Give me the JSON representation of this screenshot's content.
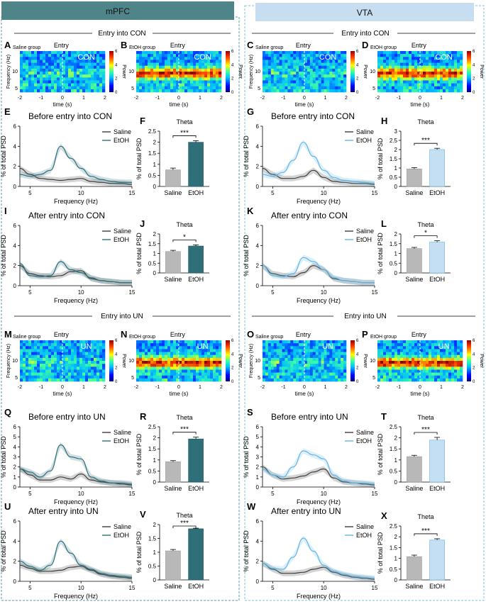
{
  "columns": {
    "left": {
      "label": "mPFC",
      "header_color": "#4f8489",
      "accent": "#2e6f79",
      "bar_fill": "#2e6f79",
      "bar_edge": "#1f5a63"
    },
    "right": {
      "label": "VTA",
      "header_color": "#c6def0",
      "accent": "#63b6e4",
      "bar_fill": "#c4dff1",
      "bar_edge": "#63b6e4"
    }
  },
  "section_titles": {
    "con_left": "Entry into CON",
    "con_right": "Entry into CON",
    "un_left": "Entry into UN",
    "un_right": "Entry into UN"
  },
  "colorbar": {
    "label": "Power",
    "ticks": [
      "0",
      "2",
      "4",
      "6"
    ]
  },
  "spectrogram_axes": {
    "ylabel": "Frequency (Hz)",
    "xlabel": "time (s)",
    "xticks": [
      "-2",
      "-1",
      "0",
      "1",
      "2"
    ],
    "yticks": [
      "5",
      "10"
    ]
  },
  "spectrograms": [
    {
      "id": "A",
      "letter": "A",
      "group": "Saline group",
      "entry": "Entry",
      "zone": "CON",
      "show_ylabel": true,
      "intensity": "low"
    },
    {
      "id": "B",
      "letter": "B",
      "group": "EtOH group",
      "entry": "Entry",
      "zone": "CON",
      "show_ylabel": false,
      "intensity": "high"
    },
    {
      "id": "C",
      "letter": "C",
      "group": "Saline group",
      "entry": "Entry",
      "zone": "CON",
      "show_ylabel": true,
      "intensity": "low"
    },
    {
      "id": "D",
      "letter": "D",
      "group": "EtOH group",
      "entry": "Entry",
      "zone": "CON",
      "show_ylabel": false,
      "intensity": "high"
    },
    {
      "id": "M",
      "letter": "M",
      "group": "Saline group",
      "entry": "Entry",
      "zone": "UN",
      "show_ylabel": true,
      "intensity": "low"
    },
    {
      "id": "N",
      "letter": "N",
      "group": "EtOH group",
      "entry": "Entry",
      "zone": "UN",
      "show_ylabel": false,
      "intensity": "high"
    },
    {
      "id": "O",
      "letter": "O",
      "group": "Saline group",
      "entry": "Entry",
      "zone": "UN",
      "show_ylabel": true,
      "intensity": "low"
    },
    {
      "id": "P",
      "letter": "P",
      "group": "EtOH group",
      "entry": "Entry",
      "zone": "UN",
      "show_ylabel": false,
      "intensity": "high"
    }
  ],
  "psd_axes": {
    "xlabel": "Frequency (Hz)",
    "xlabel_short": "Frequency (Hz)",
    "ylabel": "% of total PSD",
    "xlim": [
      4,
      15
    ],
    "xticks": [
      5,
      10,
      15
    ],
    "legend": [
      "Saline",
      "EtOH"
    ],
    "saline_color": "#3d3d3d"
  },
  "bar_axes": {
    "title": "Theta",
    "ylabel": "% of total PSD",
    "categories": [
      "Saline",
      "EtOH"
    ],
    "saline_fill": "#b8b8b8"
  },
  "chart_data": [
    {
      "id": "E",
      "type": "line",
      "letter": "E",
      "col": "left",
      "title": "Before entry into CON",
      "ylim": [
        0,
        6
      ],
      "yticks": [
        0,
        2,
        4,
        6
      ],
      "x": [
        4,
        5,
        6,
        7,
        8,
        9,
        10,
        11,
        12,
        13,
        14,
        15
      ],
      "series": [
        {
          "name": "Saline",
          "values": [
            1.8,
            1.2,
            0.8,
            0.7,
            0.6,
            0.7,
            0.8,
            0.5,
            0.4,
            0.3,
            0.3,
            0.2
          ]
        },
        {
          "name": "EtOH",
          "values": [
            1.2,
            1.0,
            1.2,
            1.6,
            4.0,
            2.8,
            1.8,
            1.0,
            0.7,
            0.5,
            0.4,
            0.4
          ]
        }
      ]
    },
    {
      "id": "F",
      "type": "bar",
      "letter": "F",
      "col": "left",
      "title": "Theta",
      "categories": [
        "Saline",
        "EtOH"
      ],
      "values": [
        0.75,
        2.0
      ],
      "errors": [
        0.08,
        0.07
      ],
      "ylim": [
        0,
        2.5
      ],
      "yticks": [
        0,
        0.5,
        1.0,
        1.5,
        2.0,
        2.5
      ],
      "sig": "***"
    },
    {
      "id": "G",
      "type": "line",
      "letter": "G",
      "col": "right",
      "title": "Before entry into CON",
      "ylim": [
        0,
        6
      ],
      "yticks": [
        0,
        2,
        4,
        6
      ],
      "x": [
        4,
        5,
        6,
        7,
        8,
        9,
        10,
        11,
        12,
        13,
        14,
        15
      ],
      "series": [
        {
          "name": "Saline",
          "values": [
            1.8,
            1.2,
            0.8,
            0.8,
            1.0,
            1.6,
            0.9,
            0.5,
            0.4,
            0.3,
            0.3,
            0.2
          ]
        },
        {
          "name": "EtOH",
          "values": [
            1.2,
            1.0,
            1.4,
            2.6,
            4.4,
            3.0,
            1.6,
            0.9,
            0.6,
            0.5,
            0.4,
            0.3
          ]
        }
      ]
    },
    {
      "id": "H",
      "type": "bar",
      "letter": "H",
      "col": "right",
      "title": "Theta",
      "categories": [
        "Saline",
        "EtOH"
      ],
      "values": [
        0.95,
        2.0
      ],
      "errors": [
        0.07,
        0.07
      ],
      "ylim": [
        0,
        3.0
      ],
      "yticks": [
        0,
        0.5,
        1.0,
        1.5,
        2.0,
        2.5,
        3.0
      ],
      "sig": "***"
    },
    {
      "id": "I",
      "type": "line",
      "letter": "I",
      "col": "left",
      "title": "After entry into CON",
      "ylim": [
        0,
        6
      ],
      "yticks": [
        0,
        2,
        4,
        6
      ],
      "x": [
        4,
        5,
        6,
        7,
        8,
        9,
        10,
        11,
        12,
        13,
        14,
        15
      ],
      "series": [
        {
          "name": "Saline",
          "values": [
            2.0,
            1.2,
            1.0,
            0.9,
            1.0,
            1.4,
            1.5,
            0.7,
            0.5,
            0.4,
            0.3,
            0.3
          ]
        },
        {
          "name": "EtOH",
          "values": [
            2.2,
            1.0,
            0.9,
            1.0,
            2.4,
            1.6,
            1.3,
            0.8,
            0.5,
            0.4,
            0.3,
            0.3
          ]
        }
      ]
    },
    {
      "id": "J",
      "type": "bar",
      "letter": "J",
      "col": "left",
      "title": "Theta",
      "categories": [
        "Saline",
        "EtOH"
      ],
      "values": [
        1.1,
        1.38
      ],
      "errors": [
        0.06,
        0.06
      ],
      "ylim": [
        0,
        2.0
      ],
      "yticks": [
        0,
        0.5,
        1.0,
        1.5,
        2.0
      ],
      "sig": "*"
    },
    {
      "id": "K",
      "type": "line",
      "letter": "K",
      "col": "right",
      "title": "After entry into CON",
      "ylim": [
        0,
        6
      ],
      "yticks": [
        0,
        2,
        4,
        6
      ],
      "x": [
        4,
        5,
        6,
        7,
        8,
        9,
        10,
        11,
        12,
        13,
        14,
        15
      ],
      "series": [
        {
          "name": "Saline",
          "values": [
            2.0,
            1.2,
            1.0,
            0.9,
            1.3,
            2.0,
            1.6,
            0.7,
            0.5,
            0.4,
            0.3,
            0.3
          ]
        },
        {
          "name": "EtOH",
          "values": [
            2.0,
            1.0,
            0.9,
            1.2,
            2.8,
            2.4,
            1.6,
            0.8,
            0.5,
            0.4,
            0.3,
            0.3
          ]
        }
      ]
    },
    {
      "id": "L",
      "type": "bar",
      "letter": "L",
      "col": "right",
      "title": "Theta",
      "categories": [
        "Saline",
        "EtOH"
      ],
      "values": [
        1.25,
        1.58
      ],
      "errors": [
        0.06,
        0.07
      ],
      "ylim": [
        0,
        2.0
      ],
      "yticks": [
        0,
        0.5,
        1.0,
        1.5,
        2.0
      ],
      "sig": "*"
    },
    {
      "id": "Q",
      "type": "line",
      "letter": "Q",
      "col": "left",
      "title": "Before entry into UN",
      "ylim": [
        0,
        6
      ],
      "yticks": [
        0,
        1,
        2,
        3,
        4,
        5,
        6
      ],
      "x": [
        4,
        5,
        6,
        7,
        8,
        9,
        10,
        11,
        12,
        13,
        14,
        15
      ],
      "series": [
        {
          "name": "Saline",
          "values": [
            1.8,
            1.2,
            0.7,
            0.7,
            1.0,
            0.8,
            1.3,
            0.7,
            0.5,
            0.4,
            0.3,
            0.2
          ]
        },
        {
          "name": "EtOH",
          "values": [
            1.8,
            1.5,
            1.0,
            1.6,
            4.2,
            3.0,
            2.8,
            1.0,
            0.6,
            0.4,
            0.4,
            0.3
          ]
        }
      ]
    },
    {
      "id": "R",
      "type": "bar",
      "letter": "R",
      "col": "left",
      "title": "Theta",
      "categories": [
        "Saline",
        "EtOH"
      ],
      "values": [
        0.92,
        1.95
      ],
      "errors": [
        0.05,
        0.08
      ],
      "ylim": [
        0,
        2.5
      ],
      "yticks": [
        0,
        0.5,
        1.0,
        1.5,
        2.0,
        2.5
      ],
      "sig": "***"
    },
    {
      "id": "S",
      "type": "line",
      "letter": "S",
      "col": "right",
      "title": "Before entry into UN",
      "ylim": [
        0,
        6
      ],
      "yticks": [
        0,
        1,
        2,
        3,
        4,
        5,
        6
      ],
      "x": [
        4,
        5,
        6,
        7,
        8,
        9,
        10,
        11,
        12,
        13,
        14,
        15
      ],
      "series": [
        {
          "name": "Saline",
          "values": [
            2.0,
            1.2,
            0.8,
            0.9,
            1.1,
            1.5,
            1.8,
            0.9,
            0.5,
            0.4,
            0.3,
            0.2
          ]
        },
        {
          "name": "EtOH",
          "values": [
            1.8,
            1.2,
            1.0,
            2.0,
            3.6,
            3.2,
            2.8,
            1.2,
            0.6,
            0.4,
            0.4,
            0.3
          ]
        }
      ]
    },
    {
      "id": "T",
      "type": "bar",
      "letter": "T",
      "col": "right",
      "title": "Theta",
      "categories": [
        "Saline",
        "EtOH"
      ],
      "values": [
        1.15,
        1.9
      ],
      "errors": [
        0.06,
        0.12
      ],
      "ylim": [
        0,
        2.5
      ],
      "yticks": [
        0,
        0.5,
        1.0,
        1.5,
        2.0,
        2.5
      ],
      "sig": "***"
    },
    {
      "id": "U",
      "type": "line",
      "letter": "U",
      "col": "left",
      "title": "After entry into UN",
      "ylim": [
        0,
        6
      ],
      "yticks": [
        0,
        2,
        4,
        6
      ],
      "x": [
        4,
        5,
        6,
        7,
        8,
        9,
        10,
        11,
        12,
        13,
        14,
        15
      ],
      "series": [
        {
          "name": "Saline",
          "values": [
            1.6,
            1.3,
            1.0,
            1.0,
            1.1,
            1.4,
            1.5,
            1.1,
            0.7,
            0.5,
            0.4,
            0.3
          ]
        },
        {
          "name": "EtOH",
          "values": [
            2.0,
            1.5,
            1.1,
            1.6,
            4.0,
            2.8,
            1.6,
            1.2,
            0.8,
            0.6,
            0.5,
            0.4
          ]
        }
      ]
    },
    {
      "id": "V",
      "type": "bar",
      "letter": "V",
      "col": "left",
      "title": "Theta",
      "categories": [
        "Saline",
        "EtOH"
      ],
      "values": [
        1.05,
        1.85
      ],
      "errors": [
        0.05,
        0.02
      ],
      "ylim": [
        0,
        2.0
      ],
      "yticks": [
        0,
        0.5,
        1.0,
        1.5,
        2.0
      ],
      "sig": "***"
    },
    {
      "id": "W",
      "type": "line",
      "letter": "W",
      "col": "right",
      "title": "After entry into UN",
      "ylim": [
        0,
        6
      ],
      "yticks": [
        0,
        2,
        4,
        6
      ],
      "x": [
        4,
        5,
        6,
        7,
        8,
        9,
        10,
        11,
        12,
        13,
        14,
        15
      ],
      "series": [
        {
          "name": "Saline",
          "values": [
            1.8,
            1.2,
            0.8,
            0.8,
            0.9,
            1.2,
            1.4,
            0.9,
            0.6,
            0.4,
            0.3,
            0.2
          ]
        },
        {
          "name": "EtOH",
          "values": [
            1.8,
            1.3,
            1.2,
            2.4,
            4.3,
            3.0,
            1.6,
            1.0,
            0.7,
            0.5,
            0.4,
            0.3
          ]
        }
      ]
    },
    {
      "id": "X",
      "type": "bar",
      "letter": "X",
      "col": "right",
      "title": "Theta",
      "categories": [
        "Saline",
        "EtOH"
      ],
      "values": [
        1.08,
        1.85
      ],
      "errors": [
        0.07,
        0.06
      ],
      "ylim": [
        0,
        2.5
      ],
      "yticks": [
        0,
        0.5,
        1.0,
        1.5,
        2.0,
        2.5
      ],
      "sig": "***"
    }
  ]
}
